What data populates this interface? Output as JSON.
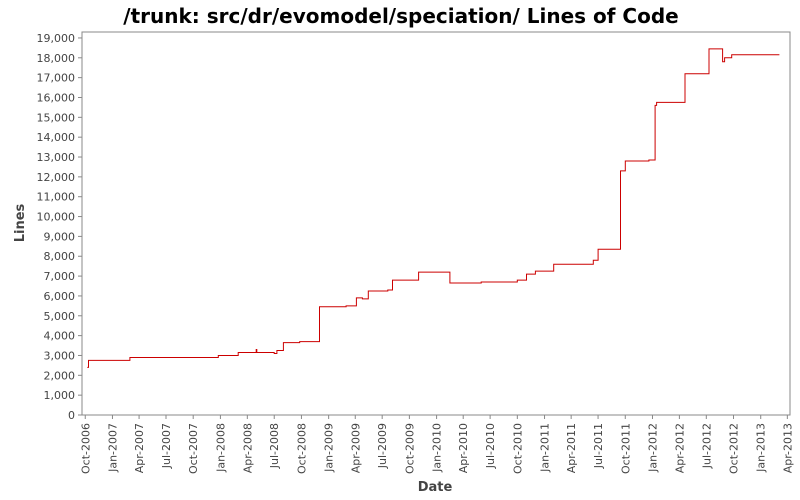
{
  "chart_data": {
    "type": "line",
    "title": "/trunk: src/dr/evomodel/speciation/ Lines of Code",
    "xlabel": "Date",
    "ylabel": "Lines",
    "ylim": [
      0,
      19300
    ],
    "xlim": [
      "2006-09-20",
      "2013-04-10"
    ],
    "grid": false,
    "legend": "none",
    "line_color": "#cc0000",
    "y_ticks": [
      {
        "value": 0,
        "label": "0"
      },
      {
        "value": 1000,
        "label": "1,000"
      },
      {
        "value": 2000,
        "label": "2,000"
      },
      {
        "value": 3000,
        "label": "3,000"
      },
      {
        "value": 4000,
        "label": "4,000"
      },
      {
        "value": 5000,
        "label": "5,000"
      },
      {
        "value": 6000,
        "label": "6,000"
      },
      {
        "value": 7000,
        "label": "7,000"
      },
      {
        "value": 8000,
        "label": "8,000"
      },
      {
        "value": 9000,
        "label": "9,000"
      },
      {
        "value": 10000,
        "label": "10,000"
      },
      {
        "value": 11000,
        "label": "11,000"
      },
      {
        "value": 12000,
        "label": "12,000"
      },
      {
        "value": 13000,
        "label": "13,000"
      },
      {
        "value": 14000,
        "label": "14,000"
      },
      {
        "value": 15000,
        "label": "15,000"
      },
      {
        "value": 16000,
        "label": "16,000"
      },
      {
        "value": 17000,
        "label": "17,000"
      },
      {
        "value": 18000,
        "label": "18,000"
      },
      {
        "value": 19000,
        "label": "19,000"
      }
    ],
    "x_ticks": [
      {
        "value": "2006-10-01",
        "label": "Oct-2006"
      },
      {
        "value": "2007-01-01",
        "label": "Jan-2007"
      },
      {
        "value": "2007-04-01",
        "label": "Apr-2007"
      },
      {
        "value": "2007-07-01",
        "label": "Jul-2007"
      },
      {
        "value": "2007-10-01",
        "label": "Oct-2007"
      },
      {
        "value": "2008-01-01",
        "label": "Jan-2008"
      },
      {
        "value": "2008-04-01",
        "label": "Apr-2008"
      },
      {
        "value": "2008-07-01",
        "label": "Jul-2008"
      },
      {
        "value": "2008-10-01",
        "label": "Oct-2008"
      },
      {
        "value": "2009-01-01",
        "label": "Jan-2009"
      },
      {
        "value": "2009-04-01",
        "label": "Apr-2009"
      },
      {
        "value": "2009-07-01",
        "label": "Jul-2009"
      },
      {
        "value": "2009-10-01",
        "label": "Oct-2009"
      },
      {
        "value": "2010-01-01",
        "label": "Jan-2010"
      },
      {
        "value": "2010-04-01",
        "label": "Apr-2010"
      },
      {
        "value": "2010-07-01",
        "label": "Jul-2010"
      },
      {
        "value": "2010-10-01",
        "label": "Oct-2010"
      },
      {
        "value": "2011-01-01",
        "label": "Jan-2011"
      },
      {
        "value": "2011-04-01",
        "label": "Apr-2011"
      },
      {
        "value": "2011-07-01",
        "label": "Jul-2011"
      },
      {
        "value": "2011-10-01",
        "label": "Oct-2011"
      },
      {
        "value": "2012-01-01",
        "label": "Jan-2012"
      },
      {
        "value": "2012-04-01",
        "label": "Apr-2012"
      },
      {
        "value": "2012-07-01",
        "label": "Jul-2012"
      },
      {
        "value": "2012-10-01",
        "label": "Oct-2012"
      },
      {
        "value": "2013-01-01",
        "label": "Jan-2013"
      },
      {
        "value": "2013-04-01",
        "label": "Apr-2013"
      }
    ],
    "series": [
      {
        "step": true,
        "points": [
          {
            "x": "2006-10-08",
            "y": 2400
          },
          {
            "x": "2006-10-12",
            "y": 2750
          },
          {
            "x": "2007-03-01",
            "y": 2900
          },
          {
            "x": "2007-12-25",
            "y": 3000
          },
          {
            "x": "2008-03-01",
            "y": 3150
          },
          {
            "x": "2008-05-01",
            "y": 3300
          },
          {
            "x": "2008-05-03",
            "y": 3150
          },
          {
            "x": "2008-07-01",
            "y": 3100
          },
          {
            "x": "2008-07-10",
            "y": 3250
          },
          {
            "x": "2008-08-01",
            "y": 3650
          },
          {
            "x": "2008-09-25",
            "y": 3700
          },
          {
            "x": "2008-12-01",
            "y": 5450
          },
          {
            "x": "2009-03-01",
            "y": 5500
          },
          {
            "x": "2009-04-05",
            "y": 5900
          },
          {
            "x": "2009-04-25",
            "y": 5850
          },
          {
            "x": "2009-05-15",
            "y": 6250
          },
          {
            "x": "2009-07-20",
            "y": 6300
          },
          {
            "x": "2009-08-05",
            "y": 6800
          },
          {
            "x": "2009-11-01",
            "y": 7200
          },
          {
            "x": "2010-02-15",
            "y": 6650
          },
          {
            "x": "2010-06-01",
            "y": 6700
          },
          {
            "x": "2010-10-01",
            "y": 6800
          },
          {
            "x": "2010-11-01",
            "y": 7100
          },
          {
            "x": "2010-12-01",
            "y": 7250
          },
          {
            "x": "2011-02-01",
            "y": 7600
          },
          {
            "x": "2011-06-15",
            "y": 7800
          },
          {
            "x": "2011-07-01",
            "y": 8350
          },
          {
            "x": "2011-09-15",
            "y": 12300
          },
          {
            "x": "2011-10-01",
            "y": 12800
          },
          {
            "x": "2011-12-20",
            "y": 12850
          },
          {
            "x": "2012-01-10",
            "y": 15600
          },
          {
            "x": "2012-01-15",
            "y": 15750
          },
          {
            "x": "2012-04-20",
            "y": 17200
          },
          {
            "x": "2012-07-10",
            "y": 18450
          },
          {
            "x": "2012-08-25",
            "y": 17800
          },
          {
            "x": "2012-09-01",
            "y": 18000
          },
          {
            "x": "2012-09-25",
            "y": 18150
          },
          {
            "x": "2013-03-05",
            "y": 18150
          }
        ]
      }
    ]
  }
}
